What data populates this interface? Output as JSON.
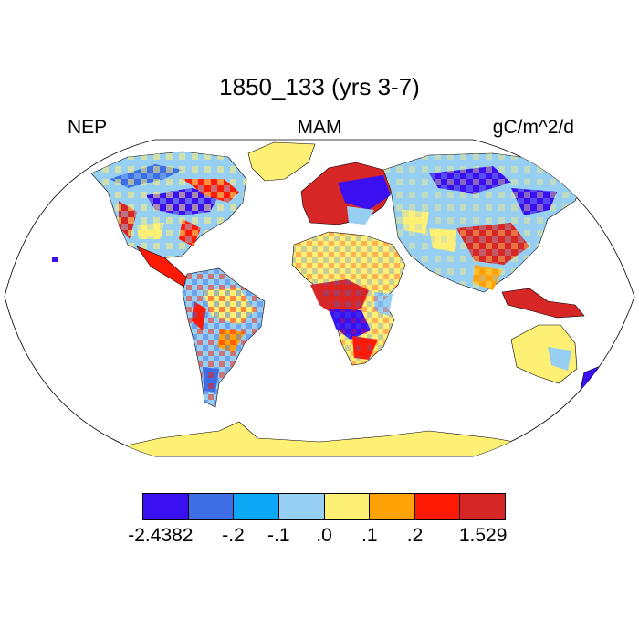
{
  "title": "1850_133 (yrs 3-7)",
  "label_left": "NEP",
  "label_center": "MAM",
  "label_right": "gC/m^2/d",
  "colorbar": {
    "colors": [
      "#3a10f0",
      "#3d6ee6",
      "#0ca7f5",
      "#97cff2",
      "#fef075",
      "#fea207",
      "#fe1a05",
      "#d62626"
    ],
    "labels": [
      "-2.4382",
      "-.2",
      "-.1",
      ".0",
      ".1",
      ".2",
      "1.529"
    ]
  },
  "colors": {
    "ocean": "#ffffff",
    "coast": "#000000",
    "antarctica": "#fef075"
  }
}
